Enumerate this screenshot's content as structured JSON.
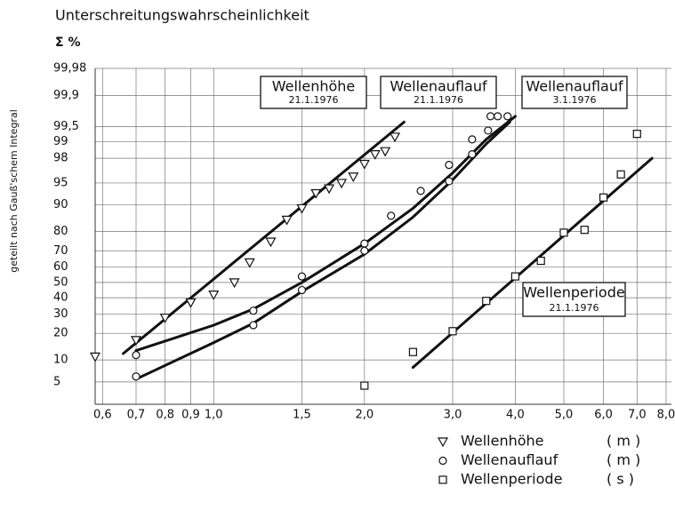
{
  "chart_data": {
    "type": "scatter",
    "title": "Unterschreitungswahrscheinlichkeit",
    "y_unit": "Σ %",
    "ylabel": "geteilt nach Gauß'schem Integral",
    "xscale": "log",
    "yscale": "probability",
    "grid": true,
    "xlim": [
      0.58,
      8.2
    ],
    "ylim": [
      2.2,
      99.98
    ],
    "xticks": [
      {
        "value": 0.6,
        "label": "0,6"
      },
      {
        "value": 0.7,
        "label": "0,7"
      },
      {
        "value": 0.8,
        "label": "0,8"
      },
      {
        "value": 0.9,
        "label": "0,9"
      },
      {
        "value": 1.0,
        "label": "1,0"
      },
      {
        "value": 1.5,
        "label": "1,5"
      },
      {
        "value": 2.0,
        "label": "2,0"
      },
      {
        "value": 3.0,
        "label": "3,0"
      },
      {
        "value": 4.0,
        "label": "4,0"
      },
      {
        "value": 5.0,
        "label": "5,0"
      },
      {
        "value": 6.0,
        "label": "6,0"
      },
      {
        "value": 7.0,
        "label": "7,0"
      },
      {
        "value": 8.0,
        "label": "8,0"
      }
    ],
    "yticks": [
      5,
      10,
      20,
      30,
      40,
      50,
      60,
      70,
      80,
      90,
      95,
      98,
      99,
      {
        "value": 99.5,
        "label": "99,5"
      },
      {
        "value": 99.9,
        "label": "99,9"
      },
      {
        "value": 99.98,
        "label": "99,98"
      }
    ],
    "series": [
      {
        "name": "Wellenhöhe",
        "unit": "( m )",
        "marker": "triangle-down",
        "color": "#111111",
        "x": [
          0.58,
          0.7,
          0.8,
          0.9,
          1.0,
          1.1,
          1.18,
          1.3,
          1.4,
          1.5,
          1.6,
          1.7,
          1.8,
          1.9,
          2.0,
          2.1,
          2.2,
          2.3
        ],
        "values": [
          11,
          17,
          28,
          37,
          42,
          50,
          63,
          75,
          85,
          89,
          93,
          94,
          95,
          96,
          97.5,
          98.3,
          98.5,
          99.2
        ]
      },
      {
        "name": "Wellenauflauf",
        "unit": "( m )",
        "marker": "circle",
        "color": "#111111",
        "x": [
          0.7,
          0.7,
          1.2,
          1.2,
          1.5,
          1.5,
          2.0,
          2.0,
          2.26,
          2.59,
          2.95,
          2.95,
          3.28,
          3.28,
          3.53,
          3.57,
          3.69,
          3.86
        ],
        "values": [
          11.5,
          6,
          32,
          24,
          54,
          45,
          74,
          70,
          86.5,
          93.5,
          97.4,
          95.3,
          98.3,
          99.1,
          99.4,
          99.7,
          99.7,
          99.7
        ]
      },
      {
        "name": "Wellenperiode",
        "unit": "( s )",
        "marker": "square",
        "color": "#111111",
        "x": [
          2.0,
          2.5,
          3.0,
          3.5,
          4.0,
          4.5,
          5.0,
          5.5,
          6.0,
          6.5,
          7.0
        ],
        "values": [
          4.4,
          12.5,
          21,
          38,
          54,
          64,
          79.5,
          80.8,
          92,
          96.3,
          99.3
        ]
      }
    ],
    "curves": [
      {
        "x": [
          0.66,
          2.4
        ],
        "y": [
          12,
          99.6
        ]
      },
      {
        "x": [
          0.7,
          1.0,
          1.2,
          1.5,
          2.0,
          2.5,
          3.0,
          3.5,
          4.0
        ],
        "y": [
          13,
          24,
          33,
          50,
          74,
          89,
          96.5,
          99.1,
          99.7
        ]
      },
      {
        "x": [
          0.7,
          1.0,
          1.2,
          1.5,
          2.0,
          2.5,
          3.0,
          3.5,
          3.9
        ],
        "y": [
          5.5,
          16,
          25,
          44,
          68,
          86,
          95.5,
          98.9,
          99.6
        ]
      },
      {
        "x": [
          2.5,
          7.5
        ],
        "y": [
          8,
          98
        ]
      }
    ],
    "annotations": [
      {
        "text": "Wellenhöhe",
        "date": "21.1.1976"
      },
      {
        "text": "Wellenauflauf",
        "date": "21.1.1976"
      },
      {
        "text": "Wellenauflauf",
        "date": "3.1.1976"
      },
      {
        "text": "Wellenperiode",
        "date": "21.1.1976"
      }
    ]
  }
}
